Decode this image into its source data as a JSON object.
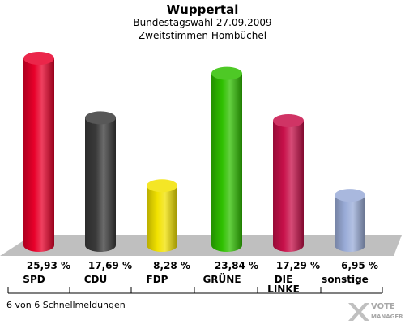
{
  "header": {
    "title": "Wuppertal",
    "subtitle": "Bundestagswahl 27.09.2009",
    "subtitle2": "Zweitstimmen Hombüchel"
  },
  "chart_data": {
    "type": "bar",
    "categories": [
      "SPD",
      "CDU",
      "FDP",
      "GRÜNE",
      "DIE LINKE",
      "sonstige"
    ],
    "values": [
      25.93,
      17.69,
      8.28,
      23.84,
      17.29,
      6.95
    ],
    "value_labels": [
      "25,93 %",
      "17,69 %",
      "8,28 %",
      "23,84 %",
      "17,29 %",
      "6,95 %"
    ],
    "colors": [
      "#e8002a",
      "#3a3a3a",
      "#f2e200",
      "#2fc000",
      "#c8104a",
      "#9aacd8"
    ],
    "title": "Wuppertal"
  },
  "footer": {
    "status": "6 von 6 Schnellmeldungen"
  },
  "logo": {
    "line1": "VOTE",
    "line2": "MANAGER",
    "icon": "vote-manager-logo-icon"
  }
}
